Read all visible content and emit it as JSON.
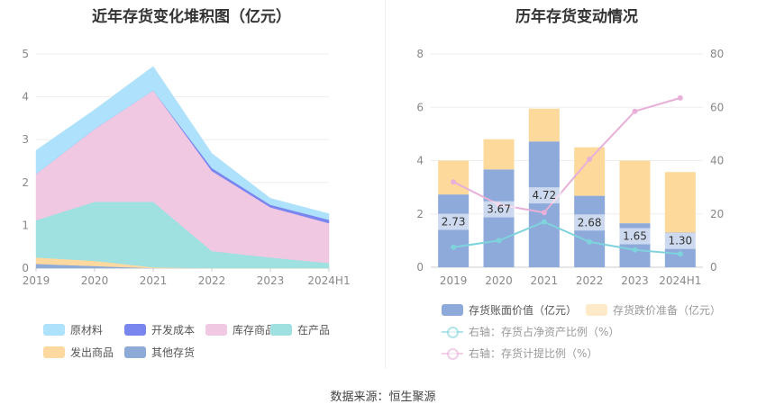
{
  "left_chart": {
    "title": "近年存货变化堆积图（亿元）"
  },
  "right_chart": {
    "title": "历年存货变动情况"
  },
  "source": "数据来源：恒生聚源",
  "chart_data": [
    {
      "type": "area",
      "title": "近年存货变化堆积图（亿元）",
      "x": [
        "2019",
        "2020",
        "2021",
        "2022",
        "2023",
        "2024H1"
      ],
      "y_ticks": [
        "0",
        "1",
        "2",
        "3",
        "4",
        "5"
      ],
      "ylim": [
        0,
        5
      ],
      "stacked": true,
      "grid": true,
      "legend_position": "bottom",
      "series": [
        {
          "name": "其他存货",
          "color": "#8eabd8",
          "values": [
            0.1,
            0.05,
            0.0,
            0.0,
            0.0,
            0.0
          ]
        },
        {
          "name": "发出商品",
          "color": "#fdd9a0",
          "values": [
            0.15,
            0.12,
            0.02,
            0.0,
            0.0,
            0.0
          ]
        },
        {
          "name": "在产品",
          "color": "#9fe0e0",
          "values": [
            0.87,
            1.38,
            1.53,
            0.4,
            0.25,
            0.12
          ]
        },
        {
          "name": "库存商品",
          "color": "#f0c8e2",
          "values": [
            1.08,
            1.7,
            2.6,
            1.87,
            1.17,
            0.93
          ]
        },
        {
          "name": "开发成本",
          "color": "#7a86f0",
          "values": [
            0.0,
            0.0,
            0.0,
            0.07,
            0.06,
            0.08
          ]
        },
        {
          "name": "原材料",
          "color": "#aee1fb",
          "values": [
            0.55,
            0.45,
            0.56,
            0.34,
            0.15,
            0.14
          ]
        }
      ]
    },
    {
      "type": "bar",
      "title": "历年存货变动情况",
      "categories": [
        "2019",
        "2020",
        "2021",
        "2022",
        "2023",
        "2024H1"
      ],
      "y_ticks_left": [
        "0",
        "2",
        "4",
        "6",
        "8"
      ],
      "y_ticks_right": [
        "0",
        "20",
        "40",
        "60",
        "80"
      ],
      "ylim_left": [
        0,
        8
      ],
      "ylim_right": [
        0,
        80
      ],
      "stacked": true,
      "legend_position": "bottom",
      "series": [
        {
          "name": "存货账面价值（亿元）",
          "axis": "left",
          "color": "#8eaadb",
          "values": [
            2.73,
            3.67,
            4.72,
            2.68,
            1.65,
            1.3
          ],
          "labels": [
            "2.73",
            "3.67",
            "4.72",
            "2.68",
            "1.65",
            "1.30"
          ]
        },
        {
          "name": "存货跌价准备（亿元）",
          "axis": "left",
          "color": "#fdd99b",
          "values": [
            1.27,
            1.13,
            1.23,
            1.82,
            2.35,
            2.27
          ]
        },
        {
          "name": "右轴：存货占净资产比例（%）",
          "axis": "right",
          "type": "line",
          "color": "#7fd3dc",
          "values": [
            7.5,
            10,
            17,
            9.5,
            6.5,
            5
          ]
        },
        {
          "name": "右轴：存货计提比例（%）",
          "axis": "right",
          "type": "line",
          "color": "#e8b0d8",
          "values": [
            32,
            23.5,
            20.5,
            40.5,
            58.5,
            63.5
          ]
        }
      ]
    }
  ]
}
